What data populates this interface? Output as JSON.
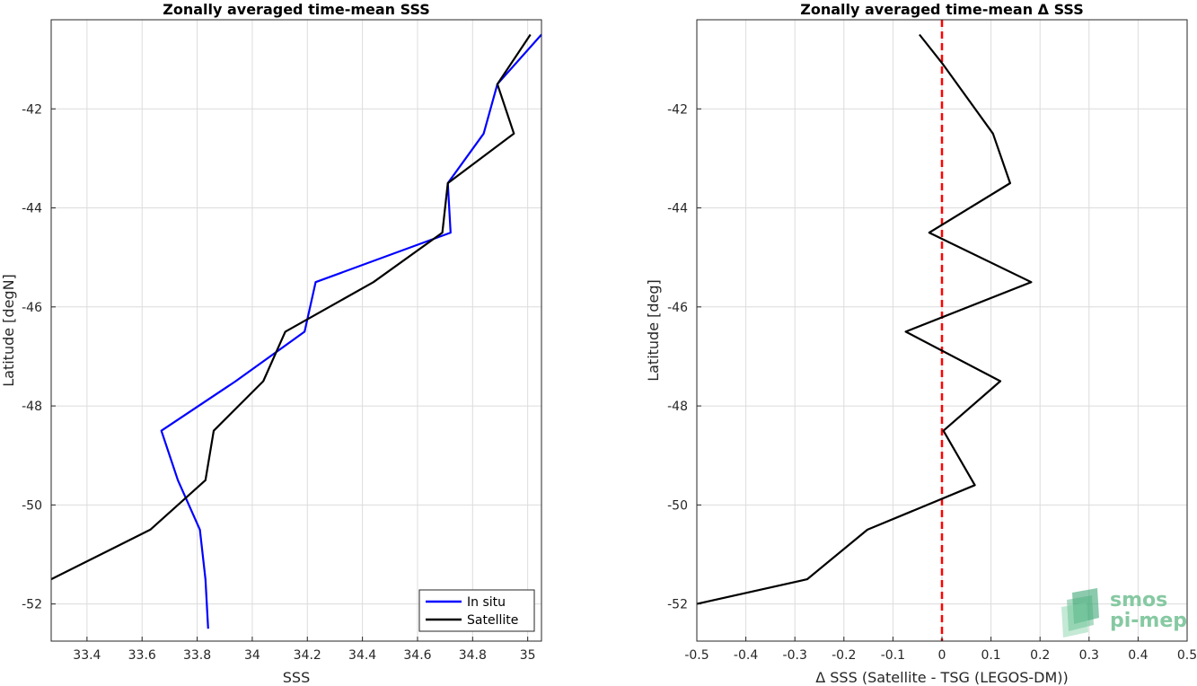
{
  "chart_data": [
    {
      "type": "line",
      "title": "Zonally averaged time-mean SSS",
      "xlabel": "SSS",
      "ylabel": "Latitude [degN]",
      "xlim": [
        33.27,
        35.05
      ],
      "ylim": [
        -52.75,
        -40.2
      ],
      "xticks": [
        33.4,
        33.6,
        33.8,
        34,
        34.2,
        34.4,
        34.6,
        34.8,
        35
      ],
      "xtick_labels": [
        "33.4",
        "33.6",
        "33.8",
        "34",
        "34.2",
        "34.4",
        "34.6",
        "34.8",
        "35"
      ],
      "yticks": [
        -52,
        -50,
        -48,
        -46,
        -44,
        -42
      ],
      "ytick_labels": [
        "-52",
        "-50",
        "-48",
        "-46",
        "-44",
        "-42"
      ],
      "grid": true,
      "legend_position": "bottom-right",
      "series": [
        {
          "name": "In situ",
          "color": "#0000ff",
          "x": [
            35.05,
            34.89,
            34.84,
            34.71,
            34.72,
            34.23,
            34.19,
            33.94,
            33.67,
            33.73,
            33.81,
            33.83,
            33.84
          ],
          "y": [
            -40.5,
            -41.5,
            -42.5,
            -43.5,
            -44.5,
            -45.5,
            -46.5,
            -47.5,
            -48.5,
            -49.5,
            -50.5,
            -51.5,
            -52.5
          ]
        },
        {
          "name": "Satellite",
          "color": "#000000",
          "x": [
            35.01,
            34.89,
            34.95,
            34.71,
            34.69,
            34.44,
            34.12,
            34.04,
            33.86,
            33.83,
            33.63,
            33.27
          ],
          "y": [
            -40.5,
            -41.5,
            -42.5,
            -43.5,
            -44.5,
            -45.5,
            -46.5,
            -47.5,
            -48.5,
            -49.5,
            -50.5,
            -51.5
          ]
        }
      ]
    },
    {
      "type": "line",
      "title": "Zonally averaged time-mean Δ SSS",
      "xlabel": "Δ SSS (Satellite - TSG (LEGOS-DM))",
      "ylabel": "Latitude [deg]",
      "xlim": [
        -0.5,
        0.5
      ],
      "ylim": [
        -52.75,
        -40.2
      ],
      "xticks": [
        -0.5,
        -0.4,
        -0.3,
        -0.2,
        -0.1,
        0,
        0.1,
        0.2,
        0.3,
        0.4,
        0.5
      ],
      "xtick_labels": [
        "-0.5",
        "-0.4",
        "-0.3",
        "-0.2",
        "-0.1",
        "0",
        "0.1",
        "0.2",
        "0.3",
        "0.4",
        "0.5"
      ],
      "yticks": [
        -52,
        -50,
        -48,
        -46,
        -44,
        -42
      ],
      "ytick_labels": [
        "-52",
        "-50",
        "-48",
        "-46",
        "-44",
        "-42"
      ],
      "grid": true,
      "reference_line": {
        "x": 0,
        "color": "#ff0000",
        "style": "dashed"
      },
      "series": [
        {
          "color": "#000000",
          "x": [
            -0.046,
            0.002,
            0.104,
            0.139,
            -0.026,
            0.182,
            -0.074,
            0.119,
            0.003,
            0.067,
            -0.152,
            -0.275,
            -0.5
          ],
          "y": [
            -40.5,
            -41.1,
            -42.5,
            -43.5,
            -44.5,
            -45.5,
            -46.5,
            -47.5,
            -48.5,
            -49.6,
            -50.5,
            -51.5,
            -52.0
          ]
        }
      ]
    }
  ],
  "logo": {
    "line1": "smos",
    "line2": "pi-mep"
  }
}
